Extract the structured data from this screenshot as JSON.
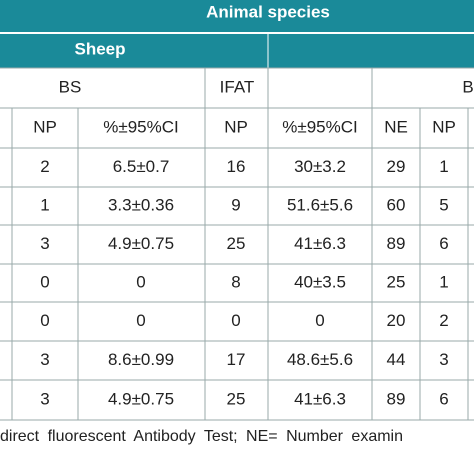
{
  "header": {
    "title": "Animal species",
    "group": "Sheep"
  },
  "subheader": {
    "bs": "BS",
    "ifat": "IFAT",
    "cut": "B"
  },
  "table": {
    "columns": [
      "NP",
      "%±95%CI",
      "NP",
      "%±95%CI",
      "NE",
      "NP"
    ],
    "rows": [
      [
        "2",
        "6.5±0.7",
        "16",
        "30±3.2",
        "29",
        "1"
      ],
      [
        "1",
        "3.3±0.36",
        "9",
        "51.6±5.6",
        "60",
        "5"
      ],
      [
        "3",
        "4.9±0.75",
        "25",
        "41±6.3",
        "89",
        "6"
      ],
      [
        "0",
        "0",
        "8",
        "40±3.5",
        "25",
        "1"
      ],
      [
        "0",
        "0",
        "0",
        "0",
        "20",
        "2"
      ],
      [
        "3",
        "8.6±0.99",
        "17",
        "48.6±5.6",
        "44",
        "3"
      ],
      [
        "3",
        "4.9±0.75",
        "25",
        "41±6.3",
        "89",
        "6"
      ]
    ]
  },
  "footer": "direct fluorescent Antibody Test; NE= Number examin"
}
